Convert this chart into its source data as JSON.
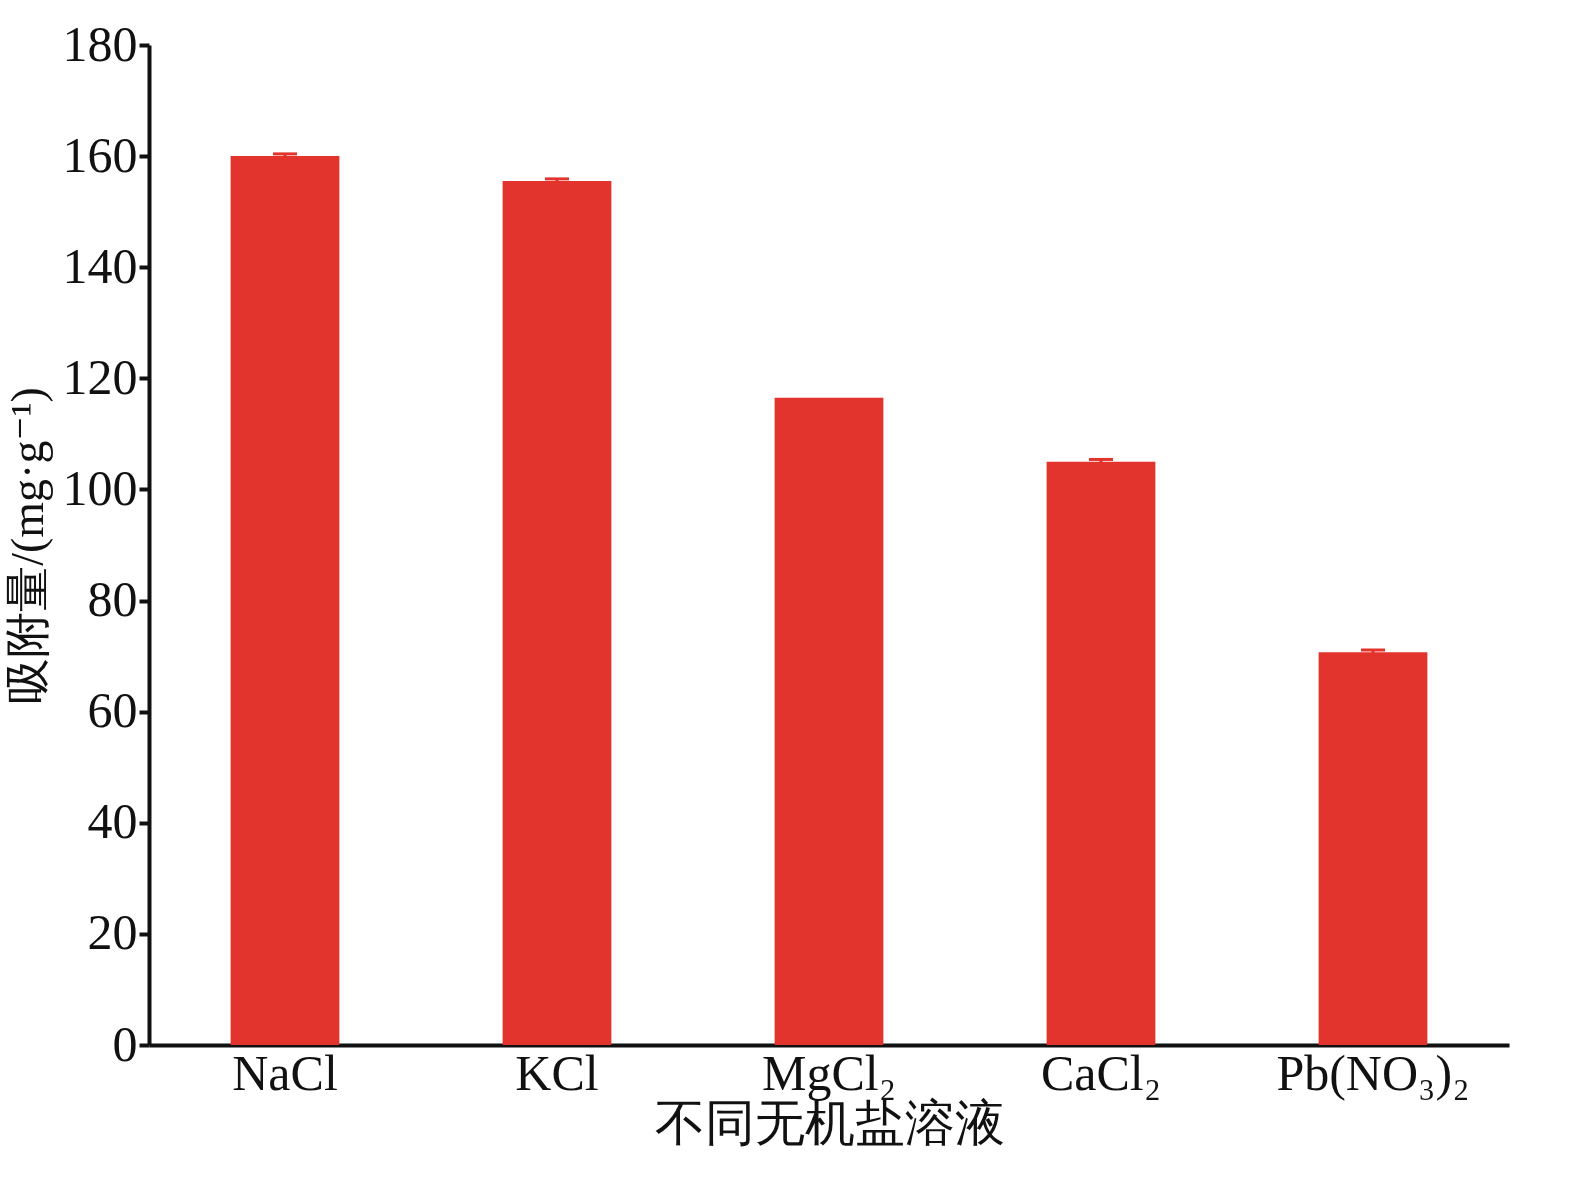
{
  "chart_data": {
    "type": "bar",
    "xlabel": "不同无机盐溶液",
    "ylabel": "吸附量/(mg·g⁻¹)",
    "categories": [
      "NaCl",
      "KCl",
      "MgCl₂",
      "CaCl₂",
      "Pb(NO₃)₂"
    ],
    "values": [
      160,
      155.5,
      116.5,
      105,
      70.7
    ],
    "errors": [
      0.4,
      0.4,
      null,
      0.4,
      0.4
    ],
    "color": "#e2332c",
    "ylim": [
      0,
      180
    ],
    "yticks": [
      0,
      20,
      40,
      60,
      80,
      100,
      120,
      140,
      160,
      180
    ],
    "grid": false
  }
}
